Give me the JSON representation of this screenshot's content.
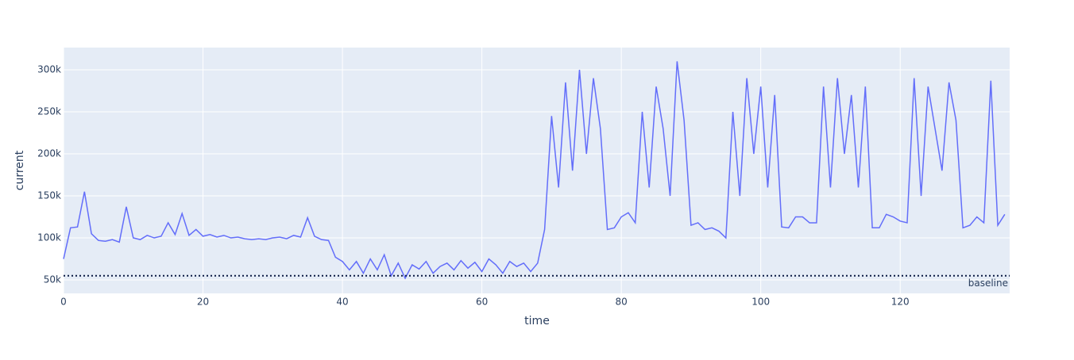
{
  "chart_data": {
    "type": "line",
    "x_label": "time",
    "y_label": "current",
    "x": [
      0,
      1,
      2,
      3,
      4,
      5,
      6,
      7,
      8,
      9,
      10,
      11,
      12,
      13,
      14,
      15,
      16,
      17,
      18,
      19,
      20,
      21,
      22,
      23,
      24,
      25,
      26,
      27,
      28,
      29,
      30,
      31,
      32,
      33,
      34,
      35,
      36,
      37,
      38,
      39,
      40,
      41,
      42,
      43,
      44,
      45,
      46,
      47,
      48,
      49,
      50,
      51,
      52,
      53,
      54,
      55,
      56,
      57,
      58,
      59,
      60,
      61,
      62,
      63,
      64,
      65,
      66,
      67,
      68,
      69,
      70,
      71,
      72,
      73,
      74,
      75,
      76,
      77,
      78,
      79,
      80,
      81,
      82,
      83,
      84,
      85,
      86,
      87,
      88,
      89,
      90,
      91,
      92,
      93,
      94,
      95,
      96,
      97,
      98,
      99,
      100,
      101,
      102,
      103,
      104,
      105,
      106,
      107,
      108,
      109,
      110,
      111,
      112,
      113,
      114,
      115,
      116,
      117,
      118,
      119,
      120,
      121,
      122,
      123,
      124,
      125,
      126,
      127,
      128,
      129,
      130,
      131,
      132,
      133,
      134,
      135
    ],
    "values": [
      75000,
      112000,
      113000,
      155000,
      105000,
      97000,
      96000,
      98000,
      95000,
      137000,
      100000,
      98000,
      103000,
      100000,
      102000,
      118000,
      104000,
      129000,
      103000,
      110000,
      102000,
      104000,
      101000,
      103000,
      100000,
      101000,
      99000,
      98000,
      99000,
      98000,
      100000,
      101000,
      99000,
      103000,
      101000,
      124000,
      102000,
      98000,
      97000,
      77000,
      72000,
      62000,
      72000,
      58000,
      75000,
      62000,
      80000,
      55000,
      70000,
      52000,
      68000,
      63000,
      72000,
      58000,
      66000,
      70000,
      62000,
      73000,
      64000,
      71000,
      60000,
      75000,
      68000,
      58000,
      72000,
      66000,
      70000,
      60000,
      70000,
      110000,
      245000,
      160000,
      285000,
      180000,
      300000,
      200000,
      290000,
      230000,
      110000,
      112000,
      125000,
      130000,
      118000,
      250000,
      160000,
      280000,
      230000,
      150000,
      310000,
      240000,
      115000,
      118000,
      110000,
      112000,
      108000,
      100000,
      250000,
      150000,
      290000,
      200000,
      280000,
      160000,
      270000,
      113000,
      112000,
      125000,
      125000,
      118000,
      118000,
      280000,
      160000,
      290000,
      200000,
      270000,
      160000,
      280000,
      112000,
      112000,
      128000,
      125000,
      120000,
      118000,
      290000,
      150000,
      280000,
      230000,
      180000,
      285000,
      240000,
      112000,
      115000,
      125000,
      118000,
      287000,
      115000,
      128000
    ],
    "color": "#636efa",
    "xlim": [
      0,
      135.7
    ],
    "xticks": [
      0,
      20,
      40,
      60,
      80,
      100,
      120
    ],
    "ylim": [
      34000,
      326400
    ],
    "yticks": [
      {
        "value": 50000,
        "label": "50k"
      },
      {
        "value": 100000,
        "label": "100k"
      },
      {
        "value": 150000,
        "label": "150k"
      },
      {
        "value": 200000,
        "label": "200k"
      },
      {
        "value": 250000,
        "label": "250k"
      },
      {
        "value": 300000,
        "label": "300k"
      }
    ],
    "baseline": {
      "value": 55000,
      "label": "baseline"
    },
    "grid": true
  }
}
